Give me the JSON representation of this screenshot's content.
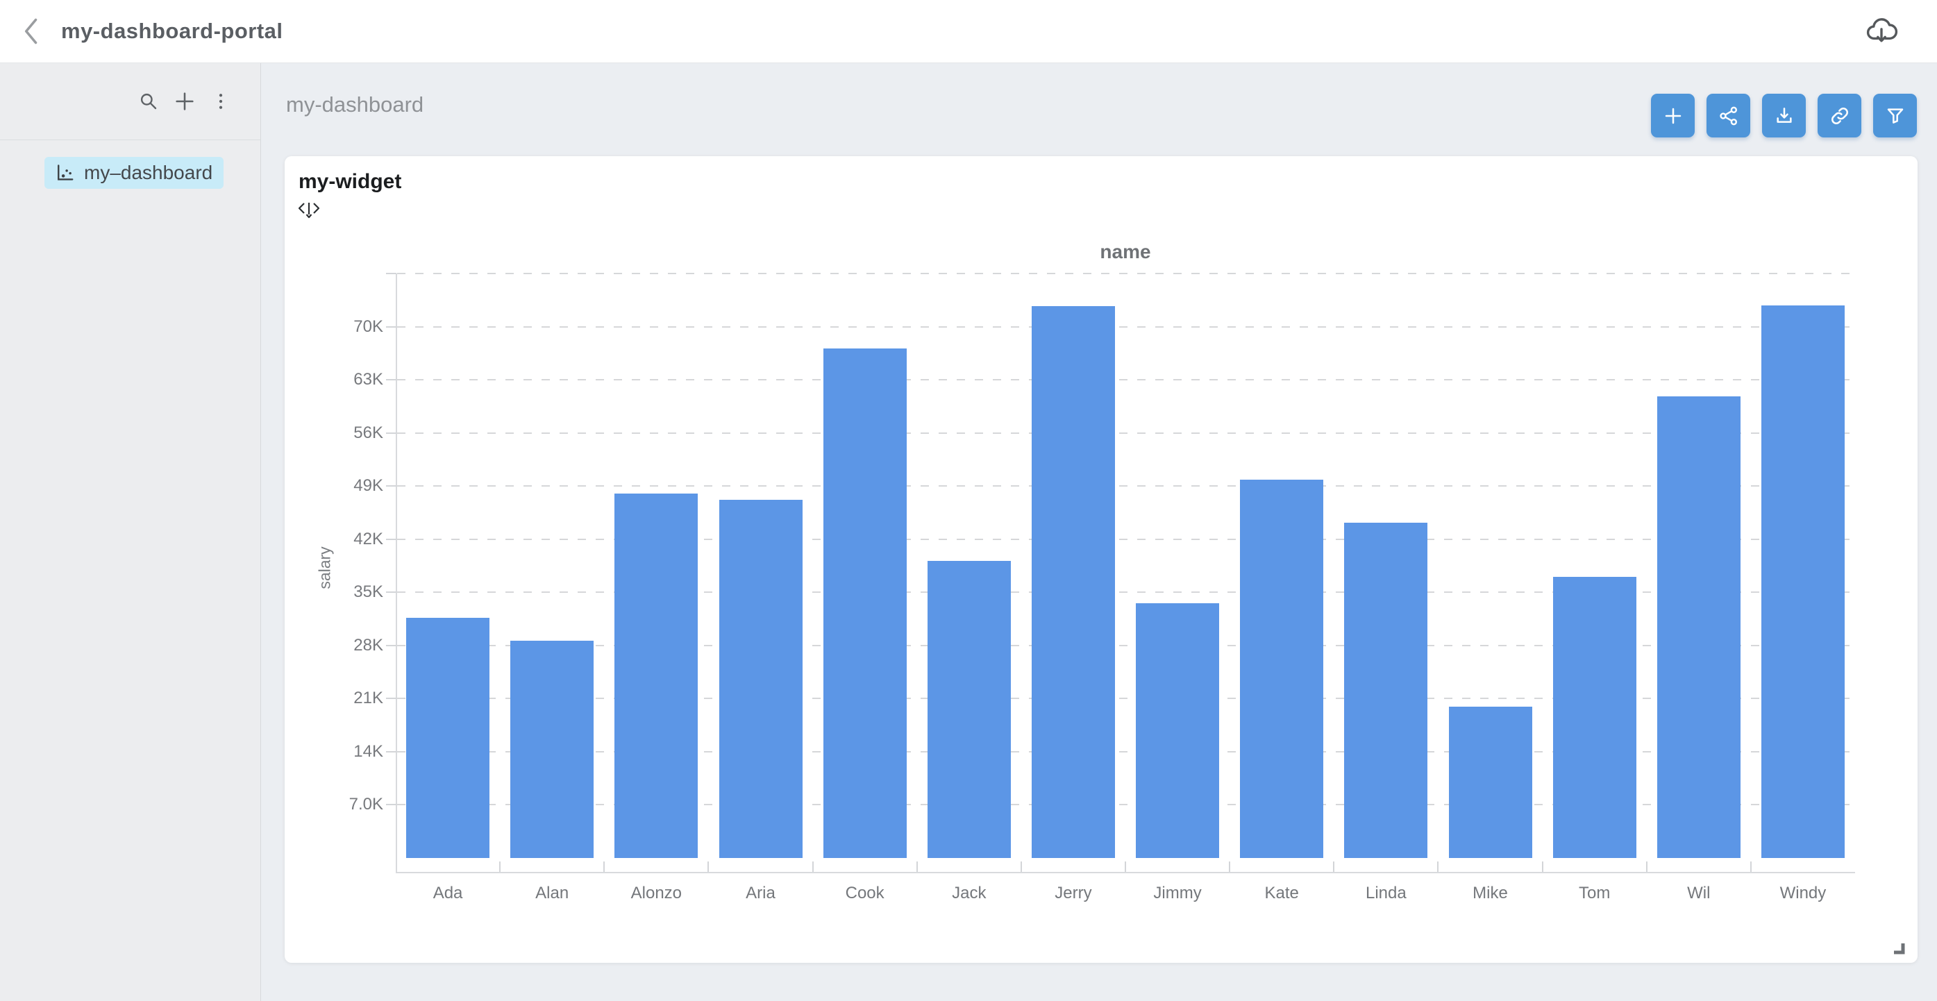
{
  "topbar": {
    "title": "my-dashboard-portal",
    "back_icon": "chevron-left",
    "download_icon": "cloud-download"
  },
  "sidebar": {
    "toolbar_icons": [
      "search",
      "plus",
      "kebab-menu"
    ],
    "tree": [
      {
        "icon": "scatter-chart",
        "label": "my–dashboard",
        "selected": true
      }
    ]
  },
  "main": {
    "title": "my-dashboard",
    "toolbar_buttons": [
      {
        "icon": "plus"
      },
      {
        "icon": "share"
      },
      {
        "icon": "download"
      },
      {
        "icon": "link"
      },
      {
        "icon": "filter"
      }
    ],
    "accent_color": "#4E95D9"
  },
  "widget": {
    "title": "my-widget",
    "drag_icon": "move-widget",
    "resize_icon": "resize-corner"
  },
  "chart_data": {
    "type": "bar",
    "title": "name",
    "xlabel": "name",
    "ylabel": "salary",
    "categories": [
      "Ada",
      "Alan",
      "Alonzo",
      "Aria",
      "Cook",
      "Jack",
      "Jerry",
      "Jimmy",
      "Kate",
      "Linda",
      "Mike",
      "Tom",
      "Wil",
      "Windy"
    ],
    "values": [
      31600,
      28600,
      48000,
      47200,
      67100,
      39100,
      72700,
      33600,
      49800,
      44200,
      19900,
      37000,
      60800,
      72800
    ],
    "ylim": [
      0,
      77000
    ],
    "ytick_step": 7000,
    "ytick_labels": [
      "7.0K",
      "14K",
      "21K",
      "28K",
      "35K",
      "42K",
      "49K",
      "56K",
      "63K",
      "70K"
    ],
    "grid": "horizontal-dashed",
    "legend_position": "none",
    "bar_color": "#5C96E6"
  }
}
